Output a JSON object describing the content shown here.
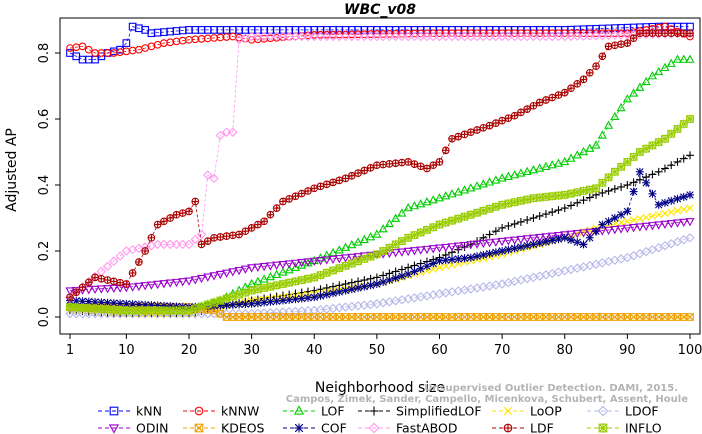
{
  "chart_data": {
    "type": "line",
    "title": "WBC_v08",
    "xlabel": "Neighborhood size",
    "ylabel": "Adjusted AP",
    "xlim": [
      1,
      100
    ],
    "ylim": [
      -0.03,
      0.9
    ],
    "xticks": [
      1,
      10,
      20,
      30,
      40,
      50,
      60,
      70,
      80,
      90,
      100
    ],
    "yticks": [
      0.0,
      0.2,
      0.4,
      0.6,
      0.8
    ],
    "ytick_labels": [
      "0.0",
      "0.2",
      "0.4",
      "0.6",
      "0.8"
    ],
    "grid": false,
    "legend_position": "bottom",
    "series": [
      {
        "name": "kNN",
        "color": "#0000ff",
        "marker": "square",
        "points": [
          [
            1,
            0.8
          ],
          [
            2,
            0.79
          ],
          [
            3,
            0.78
          ],
          [
            5,
            0.78
          ],
          [
            7,
            0.8
          ],
          [
            9,
            0.81
          ],
          [
            10,
            0.83
          ],
          [
            11,
            0.88
          ],
          [
            13,
            0.87
          ],
          [
            14,
            0.86
          ],
          [
            20,
            0.87
          ],
          [
            40,
            0.87
          ],
          [
            60,
            0.87
          ],
          [
            80,
            0.87
          ],
          [
            95,
            0.88
          ],
          [
            100,
            0.88
          ]
        ]
      },
      {
        "name": "kNNW",
        "color": "#ff0000",
        "marker": "circle",
        "points": [
          [
            1,
            0.815
          ],
          [
            3,
            0.82
          ],
          [
            5,
            0.8
          ],
          [
            8,
            0.8
          ],
          [
            12,
            0.81
          ],
          [
            16,
            0.83
          ],
          [
            20,
            0.84
          ],
          [
            27,
            0.85
          ],
          [
            30,
            0.84
          ],
          [
            40,
            0.855
          ],
          [
            60,
            0.86
          ],
          [
            80,
            0.86
          ],
          [
            90,
            0.86
          ],
          [
            96,
            0.88
          ],
          [
            100,
            0.85
          ]
        ]
      },
      {
        "name": "LOF",
        "color": "#00cc00",
        "marker": "triangle",
        "points": [
          [
            1,
            0.03
          ],
          [
            10,
            0.02
          ],
          [
            20,
            0.02
          ],
          [
            25,
            0.05
          ],
          [
            30,
            0.1
          ],
          [
            40,
            0.17
          ],
          [
            50,
            0.25
          ],
          [
            55,
            0.33
          ],
          [
            60,
            0.36
          ],
          [
            70,
            0.42
          ],
          [
            80,
            0.47
          ],
          [
            85,
            0.52
          ],
          [
            87,
            0.58
          ],
          [
            90,
            0.66
          ],
          [
            94,
            0.73
          ],
          [
            98,
            0.78
          ],
          [
            100,
            0.78
          ]
        ]
      },
      {
        "name": "SimplifiedLOF",
        "color": "#000000",
        "marker": "plus",
        "points": [
          [
            1,
            0.02
          ],
          [
            10,
            0.01
          ],
          [
            20,
            0.01
          ],
          [
            25,
            0.03
          ],
          [
            30,
            0.05
          ],
          [
            40,
            0.08
          ],
          [
            50,
            0.12
          ],
          [
            55,
            0.15
          ],
          [
            60,
            0.18
          ],
          [
            65,
            0.22
          ],
          [
            70,
            0.27
          ],
          [
            75,
            0.3
          ],
          [
            80,
            0.33
          ],
          [
            85,
            0.37
          ],
          [
            90,
            0.4
          ],
          [
            95,
            0.44
          ],
          [
            100,
            0.49
          ]
        ]
      },
      {
        "name": "LoOP",
        "color": "#ffe600",
        "marker": "cross",
        "points": [
          [
            1,
            0.02
          ],
          [
            10,
            0.01
          ],
          [
            20,
            0.01
          ],
          [
            25,
            0.03
          ],
          [
            30,
            0.05
          ],
          [
            40,
            0.07
          ],
          [
            50,
            0.1
          ],
          [
            60,
            0.15
          ],
          [
            70,
            0.19
          ],
          [
            80,
            0.24
          ],
          [
            85,
            0.27
          ],
          [
            90,
            0.29
          ],
          [
            95,
            0.31
          ],
          [
            100,
            0.33
          ]
        ]
      },
      {
        "name": "LDOF",
        "color": "#b8b8e8",
        "marker": "diamond",
        "points": [
          [
            1,
            0.01
          ],
          [
            10,
            0.01
          ],
          [
            20,
            0.01
          ],
          [
            30,
            0.01
          ],
          [
            40,
            0.02
          ],
          [
            50,
            0.04
          ],
          [
            60,
            0.07
          ],
          [
            70,
            0.1
          ],
          [
            80,
            0.14
          ],
          [
            90,
            0.18
          ],
          [
            95,
            0.21
          ],
          [
            100,
            0.24
          ]
        ]
      },
      {
        "name": "ODIN",
        "color": "#9900cc",
        "marker": "triangle-down",
        "points": [
          [
            1,
            0.08
          ],
          [
            5,
            0.085
          ],
          [
            10,
            0.09
          ],
          [
            15,
            0.1
          ],
          [
            20,
            0.11
          ],
          [
            25,
            0.13
          ],
          [
            30,
            0.15
          ],
          [
            40,
            0.17
          ],
          [
            50,
            0.19
          ],
          [
            60,
            0.21
          ],
          [
            70,
            0.23
          ],
          [
            80,
            0.25
          ],
          [
            90,
            0.27
          ],
          [
            100,
            0.29
          ]
        ]
      },
      {
        "name": "KDEOS",
        "color": "#f0a000",
        "marker": "boxx",
        "points": [
          [
            1,
            0.03
          ],
          [
            10,
            0.03
          ],
          [
            20,
            0.03
          ],
          [
            24,
            0.02
          ],
          [
            26,
            0.0
          ],
          [
            40,
            0.0
          ],
          [
            60,
            0.0
          ],
          [
            80,
            0.0
          ],
          [
            100,
            0.0
          ]
        ]
      },
      {
        "name": "COF",
        "color": "#000088",
        "marker": "star",
        "points": [
          [
            1,
            0.05
          ],
          [
            10,
            0.04
          ],
          [
            20,
            0.03
          ],
          [
            30,
            0.04
          ],
          [
            40,
            0.06
          ],
          [
            50,
            0.1
          ],
          [
            55,
            0.13
          ],
          [
            60,
            0.17
          ],
          [
            65,
            0.18
          ],
          [
            70,
            0.2
          ],
          [
            75,
            0.22
          ],
          [
            80,
            0.24
          ],
          [
            83,
            0.22
          ],
          [
            86,
            0.28
          ],
          [
            90,
            0.32
          ],
          [
            92,
            0.44
          ],
          [
            95,
            0.34
          ],
          [
            100,
            0.37
          ]
        ]
      },
      {
        "name": "FastABOD",
        "color": "#ff99ee",
        "marker": "diamond",
        "points": [
          [
            1,
            0.06
          ],
          [
            10,
            0.2
          ],
          [
            15,
            0.22
          ],
          [
            20,
            0.22
          ],
          [
            22,
            0.25
          ],
          [
            23,
            0.43
          ],
          [
            24,
            0.42
          ],
          [
            25,
            0.55
          ],
          [
            26,
            0.56
          ],
          [
            27,
            0.56
          ],
          [
            28,
            0.84
          ],
          [
            30,
            0.85
          ],
          [
            40,
            0.85
          ],
          [
            60,
            0.85
          ],
          [
            80,
            0.85
          ],
          [
            100,
            0.86
          ]
        ]
      },
      {
        "name": "LDF",
        "color": "#aa0000",
        "marker": "circleplus",
        "points": [
          [
            1,
            0.06
          ],
          [
            5,
            0.12
          ],
          [
            10,
            0.1
          ],
          [
            13,
            0.2
          ],
          [
            15,
            0.28
          ],
          [
            18,
            0.31
          ],
          [
            20,
            0.32
          ],
          [
            21,
            0.35
          ],
          [
            22,
            0.22
          ],
          [
            24,
            0.24
          ],
          [
            28,
            0.25
          ],
          [
            32,
            0.29
          ],
          [
            35,
            0.35
          ],
          [
            40,
            0.39
          ],
          [
            45,
            0.42
          ],
          [
            50,
            0.46
          ],
          [
            55,
            0.47
          ],
          [
            58,
            0.45
          ],
          [
            60,
            0.47
          ],
          [
            62,
            0.54
          ],
          [
            68,
            0.58
          ],
          [
            72,
            0.61
          ],
          [
            76,
            0.65
          ],
          [
            80,
            0.68
          ],
          [
            83,
            0.72
          ],
          [
            85,
            0.76
          ],
          [
            87,
            0.82
          ],
          [
            90,
            0.83
          ],
          [
            92,
            0.86
          ],
          [
            100,
            0.86
          ]
        ]
      },
      {
        "name": "INFLO",
        "color": "#99cc00",
        "marker": "snowflake",
        "points": [
          [
            1,
            0.03
          ],
          [
            10,
            0.02
          ],
          [
            20,
            0.02
          ],
          [
            25,
            0.05
          ],
          [
            30,
            0.08
          ],
          [
            40,
            0.12
          ],
          [
            50,
            0.19
          ],
          [
            55,
            0.24
          ],
          [
            60,
            0.28
          ],
          [
            65,
            0.31
          ],
          [
            70,
            0.34
          ],
          [
            75,
            0.36
          ],
          [
            80,
            0.37
          ],
          [
            85,
            0.39
          ],
          [
            88,
            0.44
          ],
          [
            92,
            0.5
          ],
          [
            96,
            0.54
          ],
          [
            100,
            0.6
          ]
        ]
      }
    ],
    "legend_order": [
      "kNN",
      "kNNW",
      "LOF",
      "SimplifiedLOF",
      "LoOP",
      "LDOF",
      "ODIN",
      "KDEOS",
      "COF",
      "FastABOD",
      "LDF",
      "INFLO"
    ]
  },
  "watermark": {
    "line1": "Unsupervised Outlier Detection. DAMI, 2015.",
    "line2": "Campos, Zimek, Sander, Campello, Micenkova, Schubert, Assent, Houle"
  }
}
